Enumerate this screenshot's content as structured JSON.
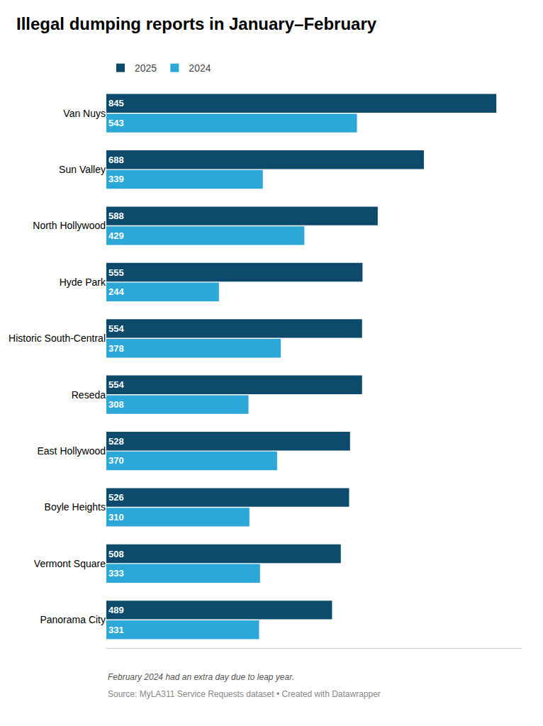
{
  "chart_data": {
    "type": "bar",
    "orientation": "horizontal",
    "title": "Illegal dumping reports in January–February",
    "categories": [
      "Van Nuys",
      "Sun Valley",
      "North Hollywood",
      "Hyde Park",
      "Historic South-Central",
      "Reseda",
      "East Hollywood",
      "Boyle Heights",
      "Vermont Square",
      "Panorama City"
    ],
    "series": [
      {
        "name": "2025",
        "color": "#0d4a6b",
        "values": [
          845,
          688,
          588,
          555,
          554,
          554,
          528,
          526,
          508,
          489
        ]
      },
      {
        "name": "2024",
        "color": "#2ba8d8",
        "values": [
          543,
          339,
          429,
          244,
          378,
          308,
          370,
          310,
          333,
          331
        ]
      }
    ],
    "xlim": [
      0,
      900
    ],
    "tick_labels": "y",
    "data_labels": true,
    "legend": "upper left",
    "grid": false,
    "annotations": [
      "February 2024 had an extra day due to leap year.",
      "Source: MyLA311 Service Requests dataset • Created with Datawrapper"
    ]
  }
}
